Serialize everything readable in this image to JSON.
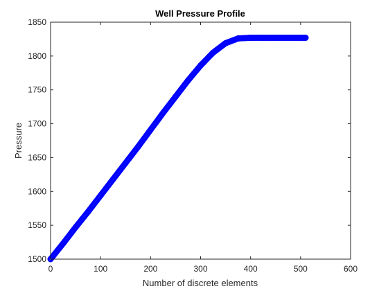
{
  "chart_data": {
    "type": "scatter",
    "title": "Well Pressure Profile",
    "xlabel": "Number of discrete elements",
    "ylabel": "Pressure",
    "xlim": [
      0,
      600
    ],
    "ylim": [
      1500,
      1850
    ],
    "xticks": [
      0,
      100,
      200,
      300,
      400,
      500,
      600
    ],
    "yticks": [
      1500,
      1550,
      1600,
      1650,
      1700,
      1750,
      1800,
      1850
    ],
    "grid": false,
    "marker": "circle",
    "marker_color": "#0000ff",
    "series": [
      {
        "x": [
          0,
          25,
          50,
          75,
          100,
          125,
          150,
          175,
          200,
          225,
          250,
          275,
          300,
          325,
          350,
          375,
          400,
          425,
          450,
          475,
          510
        ],
        "y": [
          1500,
          1523,
          1547,
          1570,
          1594,
          1618,
          1642,
          1666,
          1691,
          1716,
          1740,
          1764,
          1786,
          1805,
          1819,
          1826,
          1827,
          1827,
          1827,
          1827,
          1827
        ]
      }
    ]
  }
}
